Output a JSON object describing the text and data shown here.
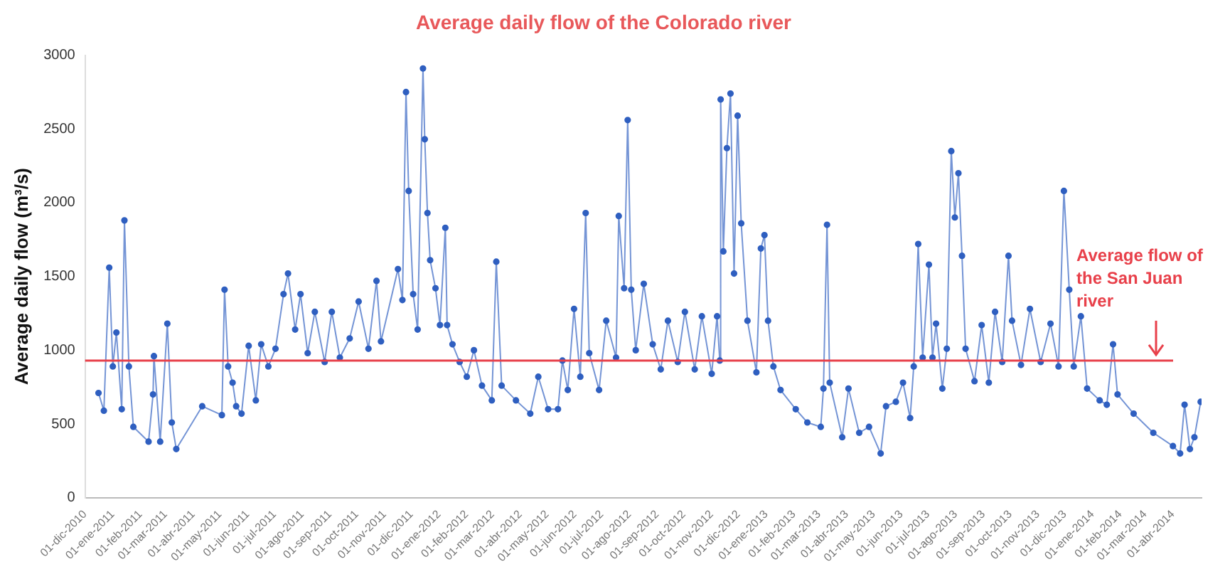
{
  "chart_data": {
    "type": "line",
    "title": "Average daily flow of the Colorado river",
    "ylabel": "Average daily flow (m³/s)",
    "marker": "circle",
    "x": [
      "2010-12-16",
      "2010-12-22",
      "2010-12-28",
      "2011-01-01",
      "2011-01-05",
      "2011-01-11",
      "2011-01-14",
      "2011-01-19",
      "2011-01-24",
      "2011-02-10",
      "2011-02-15",
      "2011-02-16",
      "2011-02-23",
      "2011-03-03",
      "2011-03-08",
      "2011-03-13",
      "2011-04-11",
      "2011-05-03",
      "2011-05-06",
      "2011-05-10",
      "2011-05-15",
      "2011-05-19",
      "2011-05-25",
      "2011-06-02",
      "2011-06-10",
      "2011-06-16",
      "2011-06-24",
      "2011-07-02",
      "2011-07-11",
      "2011-07-16",
      "2011-07-24",
      "2011-07-30",
      "2011-08-07",
      "2011-08-15",
      "2011-08-26",
      "2011-09-03",
      "2011-09-12",
      "2011-09-23",
      "2011-10-03",
      "2011-10-14",
      "2011-10-23",
      "2011-10-28",
      "2011-11-16",
      "2011-11-21",
      "2011-11-25",
      "2011-11-28",
      "2011-12-03",
      "2011-12-08",
      "2011-12-14",
      "2011-12-16",
      "2011-12-19",
      "2011-12-22",
      "2011-12-28",
      "2012-01-02",
      "2012-01-08",
      "2012-01-10",
      "2012-01-16",
      "2012-01-24",
      "2012-02-01",
      "2012-02-09",
      "2012-02-18",
      "2012-02-29",
      "2012-03-05",
      "2012-03-11",
      "2012-03-27",
      "2012-04-12",
      "2012-04-21",
      "2012-05-02",
      "2012-05-13",
      "2012-05-18",
      "2012-05-24",
      "2012-05-31",
      "2012-06-07",
      "2012-06-13",
      "2012-06-17",
      "2012-06-28",
      "2012-07-06",
      "2012-07-17",
      "2012-07-20",
      "2012-07-26",
      "2012-07-30",
      "2012-08-03",
      "2012-08-08",
      "2012-08-17",
      "2012-08-27",
      "2012-09-05",
      "2012-09-13",
      "2012-09-24",
      "2012-10-02",
      "2012-10-13",
      "2012-10-21",
      "2012-11-01",
      "2012-11-07",
      "2012-11-10",
      "2012-11-11",
      "2012-11-14",
      "2012-11-18",
      "2012-11-22",
      "2012-11-26",
      "2012-11-30",
      "2012-12-04",
      "2012-12-11",
      "2012-12-21",
      "2012-12-26",
      "2012-12-30",
      "2013-01-03",
      "2013-01-09",
      "2013-01-17",
      "2013-02-03",
      "2013-02-16",
      "2013-03-03",
      "2013-03-06",
      "2013-03-10",
      "2013-03-13",
      "2013-03-27",
      "2013-04-03",
      "2013-04-15",
      "2013-04-26",
      "2013-05-09",
      "2013-05-15",
      "2013-05-26",
      "2013-06-03",
      "2013-06-11",
      "2013-06-15",
      "2013-06-20",
      "2013-06-25",
      "2013-07-02",
      "2013-07-06",
      "2013-07-10",
      "2013-07-17",
      "2013-07-22",
      "2013-07-27",
      "2013-07-31",
      "2013-08-04",
      "2013-08-08",
      "2013-08-12",
      "2013-08-22",
      "2013-08-30",
      "2013-09-07",
      "2013-09-14",
      "2013-09-22",
      "2013-09-29",
      "2013-10-03",
      "2013-10-13",
      "2013-10-23",
      "2013-11-04",
      "2013-11-15",
      "2013-11-24",
      "2013-11-30",
      "2013-12-06",
      "2013-12-11",
      "2013-12-19",
      "2013-12-26",
      "2014-01-09",
      "2014-01-17",
      "2014-01-24",
      "2014-01-29",
      "2014-02-16",
      "2014-03-10",
      "2014-04-01",
      "2014-04-09",
      "2014-04-14",
      "2014-04-20",
      "2014-04-25",
      "2014-05-02"
    ],
    "series": [
      {
        "color": "#2f5fc0",
        "values": [
          710,
          590,
          1560,
          890,
          1120,
          600,
          1880,
          890,
          480,
          380,
          700,
          960,
          380,
          1180,
          510,
          330,
          620,
          560,
          1410,
          890,
          780,
          620,
          570,
          1030,
          660,
          1040,
          890,
          1010,
          1380,
          1520,
          1140,
          1380,
          980,
          1260,
          920,
          1260,
          950,
          1080,
          1330,
          1010,
          1470,
          1060,
          1550,
          1340,
          2750,
          2080,
          1380,
          1140,
          2910,
          2430,
          1930,
          1610,
          1420,
          1170,
          1830,
          1170,
          1040,
          920,
          820,
          1000,
          760,
          660,
          1600,
          760,
          660,
          570,
          820,
          600,
          600,
          930,
          730,
          1280,
          820,
          1930,
          980,
          730,
          1200,
          950,
          1910,
          1420,
          2560,
          1410,
          1000,
          1450,
          1040,
          870,
          1200,
          920,
          1260,
          870,
          1230,
          840,
          1230,
          930,
          2700,
          1670,
          2370,
          2740,
          1520,
          2590,
          1860,
          1200,
          850,
          1690,
          1780,
          1200,
          890,
          730,
          600,
          510,
          480,
          740,
          1850,
          780,
          410,
          740,
          440,
          480,
          300,
          620,
          650,
          780,
          540,
          890,
          1720,
          950,
          1580,
          950,
          1180,
          740,
          1010,
          2350,
          1900,
          2200,
          1640,
          1010,
          790,
          1170,
          780,
          1260,
          920,
          1640,
          1200,
          900,
          1280,
          920,
          1180,
          890,
          2080,
          1410,
          890,
          1230,
          740,
          660,
          630,
          1040,
          700,
          570,
          440,
          350,
          300,
          630,
          330,
          410,
          650
        ]
      }
    ],
    "xlim": [
      "2010-12-01",
      "2014-05-03"
    ],
    "xticks": [
      {
        "value": "2010-12-01",
        "label": "01-dic-2010"
      },
      {
        "value": "2011-01-01",
        "label": "01-ene-2011"
      },
      {
        "value": "2011-02-01",
        "label": "01-feb-2011"
      },
      {
        "value": "2011-03-01",
        "label": "01-mar-2011"
      },
      {
        "value": "2011-04-01",
        "label": "01-abr-2011"
      },
      {
        "value": "2011-05-01",
        "label": "01-may-2011"
      },
      {
        "value": "2011-06-01",
        "label": "01-jun-2011"
      },
      {
        "value": "2011-07-01",
        "label": "01-jul-2011"
      },
      {
        "value": "2011-08-01",
        "label": "01-ago-2011"
      },
      {
        "value": "2011-09-01",
        "label": "01-sep-2011"
      },
      {
        "value": "2011-10-01",
        "label": "01-oct-2011"
      },
      {
        "value": "2011-11-01",
        "label": "01-nov-2011"
      },
      {
        "value": "2011-12-01",
        "label": "01-dic-2011"
      },
      {
        "value": "2012-01-01",
        "label": "01-ene-2012"
      },
      {
        "value": "2012-02-01",
        "label": "01-feb-2012"
      },
      {
        "value": "2012-03-01",
        "label": "01-mar-2012"
      },
      {
        "value": "2012-04-01",
        "label": "01-abr-2012"
      },
      {
        "value": "2012-05-01",
        "label": "01-may-2012"
      },
      {
        "value": "2012-06-01",
        "label": "01-jun-2012"
      },
      {
        "value": "2012-07-01",
        "label": "01-jul-2012"
      },
      {
        "value": "2012-08-01",
        "label": "01-ago-2012"
      },
      {
        "value": "2012-09-01",
        "label": "01-sep-2012"
      },
      {
        "value": "2012-10-01",
        "label": "01-oct-2012"
      },
      {
        "value": "2012-11-01",
        "label": "01-nov-2012"
      },
      {
        "value": "2012-12-01",
        "label": "01-dic-2012"
      },
      {
        "value": "2013-01-01",
        "label": "01-ene-2013"
      },
      {
        "value": "2013-02-01",
        "label": "01-feb-2013"
      },
      {
        "value": "2013-03-01",
        "label": "01-mar-2013"
      },
      {
        "value": "2013-04-01",
        "label": "01-abr-2013"
      },
      {
        "value": "2013-05-01",
        "label": "01-may-2013"
      },
      {
        "value": "2013-06-01",
        "label": "01-jun-2013"
      },
      {
        "value": "2013-07-01",
        "label": "01-jul-2013"
      },
      {
        "value": "2013-08-01",
        "label": "01-ago-2013"
      },
      {
        "value": "2013-09-01",
        "label": "01-sep-2013"
      },
      {
        "value": "2013-10-01",
        "label": "01-oct-2013"
      },
      {
        "value": "2013-11-01",
        "label": "01-nov-2013"
      },
      {
        "value": "2013-12-01",
        "label": "01-dic-2013"
      },
      {
        "value": "2014-01-01",
        "label": "01-ene-2014"
      },
      {
        "value": "2014-02-01",
        "label": "01-feb-2014"
      },
      {
        "value": "2014-03-01",
        "label": "01-mar-2014"
      },
      {
        "value": "2014-04-01",
        "label": "01-abr-2014"
      }
    ],
    "ylim": [
      0,
      3000
    ],
    "yticks": [
      0,
      500,
      1000,
      1500,
      2000,
      2500,
      3000
    ],
    "ref_lines": [
      {
        "axis": "y",
        "value": 930,
        "label": "Average flow of the San Juan river",
        "color": "#e8404a"
      }
    ]
  }
}
